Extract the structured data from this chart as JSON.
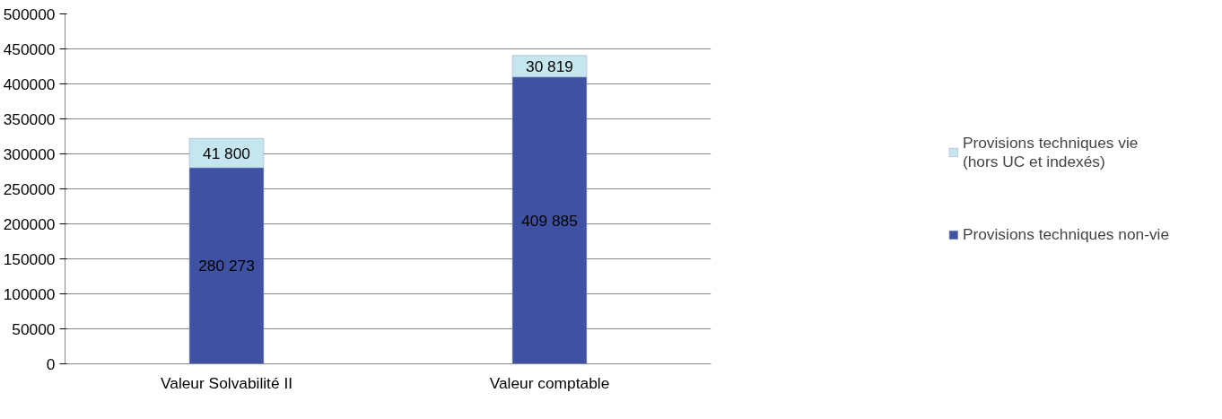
{
  "chart_data": {
    "type": "bar",
    "stacked": true,
    "categories": [
      "Valeur Solvabilité II",
      "Valeur comptable"
    ],
    "series": [
      {
        "name": "Provisions techniques non-vie",
        "color": "#3f51a3",
        "values": [
          280273,
          409885
        ],
        "value_labels": [
          "280 273",
          "409 885"
        ]
      },
      {
        "name": "Provisions techniques vie (hors UC et indexés)",
        "color": "#c6e6ef",
        "values": [
          41800,
          30819
        ],
        "value_labels": [
          "41 800",
          "30 819"
        ]
      }
    ],
    "ylim": [
      0,
      500000
    ],
    "yticks": [
      0,
      50000,
      100000,
      150000,
      200000,
      250000,
      300000,
      350000,
      400000,
      450000,
      500000
    ],
    "grid": "y",
    "legend": "right"
  }
}
